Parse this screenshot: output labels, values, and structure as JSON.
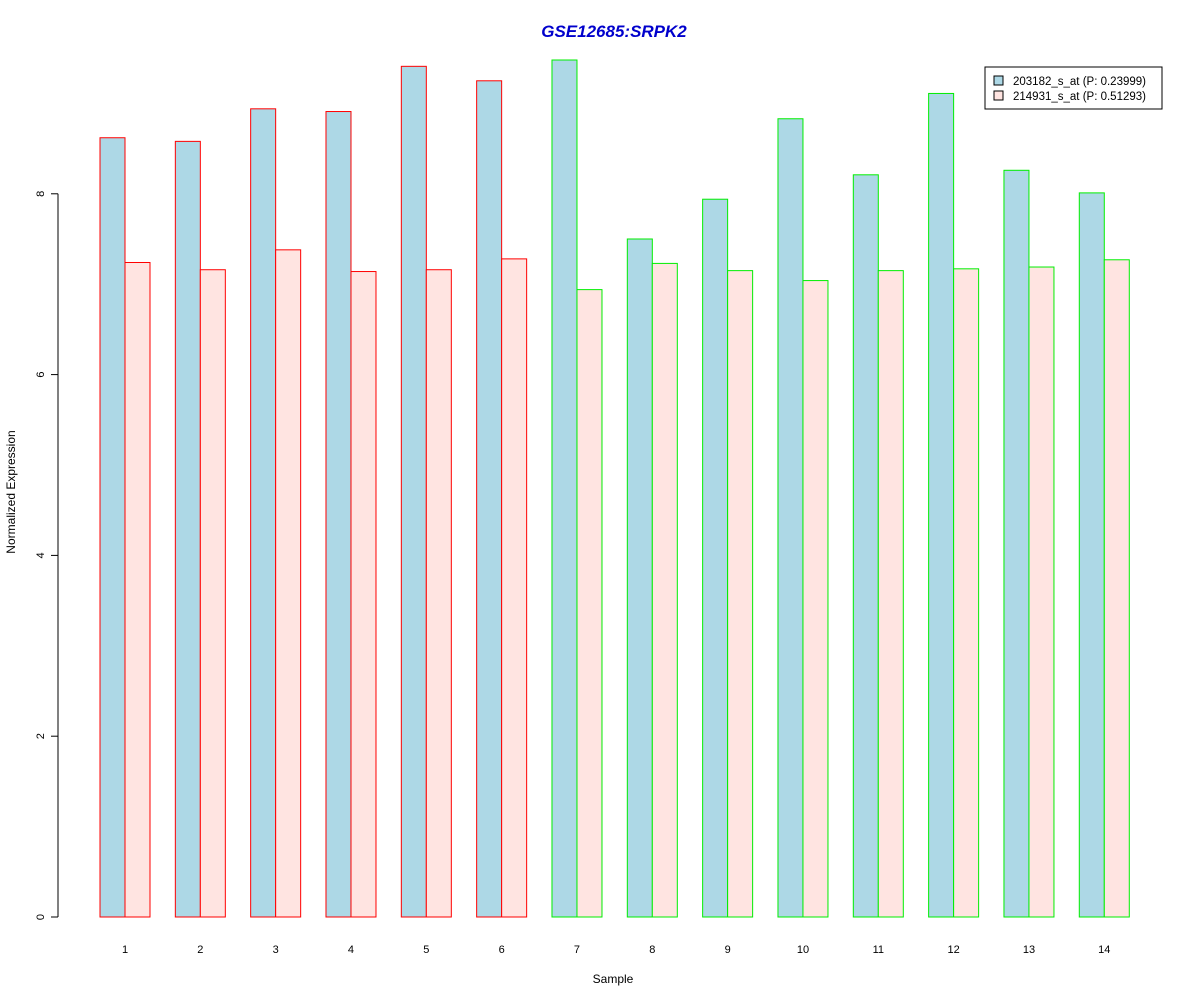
{
  "chart_data": {
    "type": "bar",
    "title": "GSE12685:SRPK2",
    "xlabel": "Sample",
    "ylabel": "Normalized Expression",
    "categories": [
      "1",
      "2",
      "3",
      "4",
      "5",
      "6",
      "7",
      "8",
      "9",
      "10",
      "11",
      "12",
      "13",
      "14"
    ],
    "group_border_colors": [
      "#ff0000",
      "#ff0000",
      "#ff0000",
      "#ff0000",
      "#ff0000",
      "#ff0000",
      "#00ee00",
      "#00ee00",
      "#00ee00",
      "#00ee00",
      "#00ee00",
      "#00ee00",
      "#00ee00",
      "#00ee00"
    ],
    "series": [
      {
        "name": "203182_s_at (P: 0.23999)",
        "fill": "#add8e6",
        "values": [
          8.62,
          8.58,
          8.94,
          8.91,
          9.41,
          9.25,
          9.48,
          7.5,
          7.94,
          8.83,
          8.21,
          9.11,
          8.26,
          8.01
        ]
      },
      {
        "name": "214931_s_at (P: 0.51293)",
        "fill": "#ffe4e1",
        "values": [
          7.24,
          7.16,
          7.38,
          7.14,
          7.16,
          7.28,
          6.94,
          7.23,
          7.15,
          7.04,
          7.15,
          7.17,
          7.19,
          7.27
        ]
      }
    ],
    "yticks": [
      0,
      2,
      4,
      6,
      8
    ],
    "ylim": [
      0,
      9.48
    ],
    "grid": false,
    "legend_position": "top-right",
    "title_color": "#0000cc"
  }
}
